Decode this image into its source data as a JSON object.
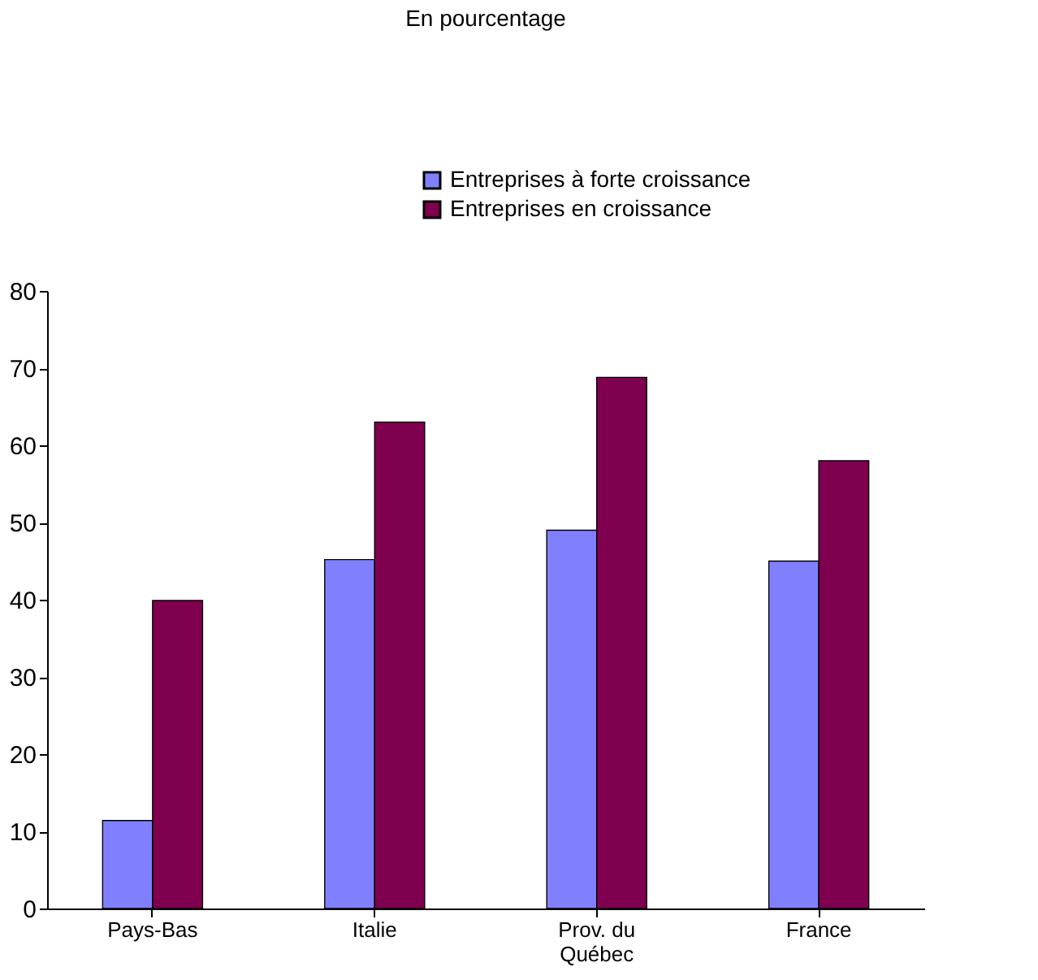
{
  "chart_data": {
    "type": "bar",
    "title": "En pourcentage",
    "categories": [
      "Pays-Bas",
      "Italie",
      "Prov. du Québec",
      "France"
    ],
    "series": [
      {
        "name": "Entreprises à forte croissance",
        "color": "#8080ff",
        "values": [
          11.4,
          45.2,
          49,
          45
        ]
      },
      {
        "name": "Entreprises en croissance",
        "color": "#800050",
        "values": [
          39.9,
          63,
          68.8,
          58
        ]
      }
    ],
    "ylim": [
      0,
      80
    ],
    "yticks": [
      0,
      10,
      20,
      30,
      40,
      50,
      60,
      70,
      80
    ],
    "grid": false,
    "legend": "top right"
  }
}
